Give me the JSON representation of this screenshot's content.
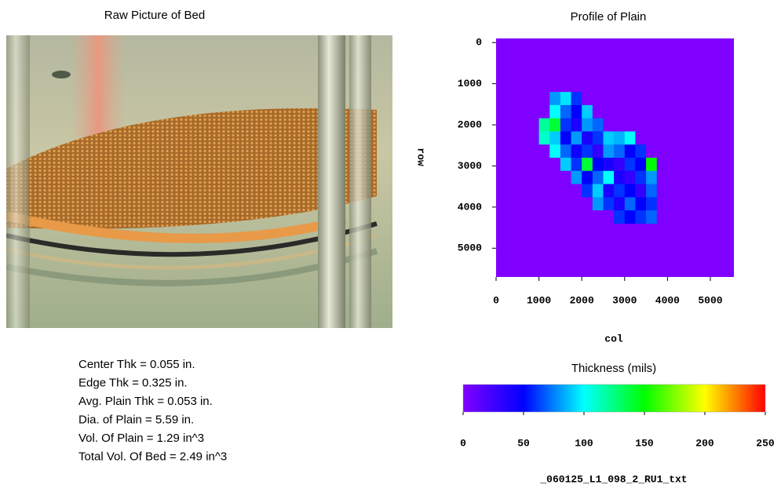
{
  "photo": {
    "title": "Raw Picture of Bed"
  },
  "stats": [
    "Center Thk = 0.055 in.",
    "Edge Thk = 0.325 in.",
    "Avg. Plain Thk = 0.053 in.",
    "Dia. of Plain = 5.59 in.",
    "Vol. Of Plain = 1.29 in^3",
    "Total Vol. Of Bed = 2.49 in^3"
  ],
  "chart_data": {
    "type": "heatmap",
    "title": "Profile of Plain",
    "x_label": "col",
    "y_label": "row",
    "xlim": [
      0,
      5550
    ],
    "ylim": [
      -100,
      5700
    ],
    "y_reversed": true,
    "xticks": [
      0,
      1000,
      2000,
      3000,
      4000,
      5000
    ],
    "yticks": [
      0,
      1000,
      2000,
      3000,
      4000,
      5000
    ],
    "x_edges": [
      1000,
      1250,
      1500,
      1750,
      2000,
      2250,
      2500,
      2750,
      3000,
      3250,
      3500,
      3750,
      4000
    ],
    "y_edges": [
      1200,
      1520,
      1840,
      2160,
      2480,
      2800,
      3120,
      3440,
      3760,
      4080,
      4400
    ],
    "z": [
      [
        0,
        80,
        95,
        60,
        0,
        0,
        0,
        0,
        0,
        0,
        0,
        0
      ],
      [
        0,
        100,
        70,
        50,
        90,
        0,
        0,
        0,
        0,
        0,
        0,
        0
      ],
      [
        120,
        140,
        60,
        40,
        80,
        70,
        0,
        0,
        0,
        0,
        0,
        0
      ],
      [
        110,
        90,
        50,
        80,
        40,
        60,
        90,
        85,
        100,
        0,
        0,
        0
      ],
      [
        0,
        100,
        70,
        45,
        60,
        30,
        80,
        70,
        50,
        60,
        0,
        0
      ],
      [
        0,
        0,
        90,
        60,
        140,
        50,
        40,
        30,
        60,
        50,
        150,
        0
      ],
      [
        0,
        0,
        0,
        80,
        50,
        70,
        100,
        40,
        30,
        60,
        80,
        0
      ],
      [
        0,
        0,
        0,
        0,
        60,
        90,
        40,
        60,
        50,
        30,
        70,
        0
      ],
      [
        0,
        0,
        0,
        0,
        0,
        80,
        60,
        40,
        70,
        50,
        60,
        0
      ],
      [
        0,
        0,
        0,
        0,
        0,
        0,
        0,
        60,
        50,
        60,
        70,
        0
      ]
    ],
    "colorbar": {
      "title": "Thickness (mils)",
      "clim": [
        0,
        250
      ],
      "ticks": [
        0,
        50,
        100,
        150,
        200,
        250
      ],
      "colors": [
        "#8000ff",
        "#0000ff",
        "#00ffff",
        "#00ff00",
        "#ffff00",
        "#ff0000"
      ]
    },
    "caption": "_060125_L1_098_2_RU1_txt"
  }
}
